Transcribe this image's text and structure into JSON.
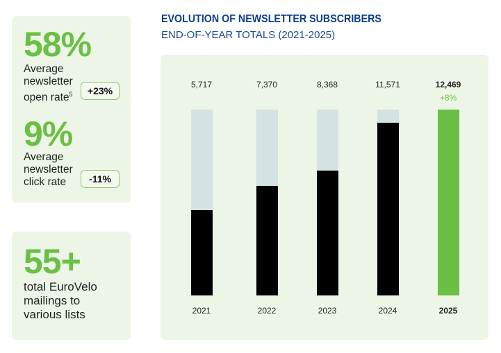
{
  "stats": {
    "open_rate": {
      "value": "58%",
      "label": "Average newsletter open rate",
      "footnote": "5",
      "change": "+23%"
    },
    "click_rate": {
      "value": "9%",
      "label": "Average newsletter click rate",
      "change": "-11%"
    },
    "mailings": {
      "value": "55+",
      "label": "total EuroVelo mailings to various lists"
    }
  },
  "colors": {
    "accent": "#6abf45",
    "bar": "#000000",
    "track": "#d5e2e3",
    "title": "#0a3d8f",
    "panel": "#edf5e6"
  },
  "chart_data": {
    "type": "bar",
    "title": "EVOLUTION OF NEWSLETTER SUBSCRIBERS",
    "subtitle": "END-OF-YEAR TOTALS (2021-2025)",
    "categories": [
      "2021",
      "2022",
      "2023",
      "2024",
      "2025"
    ],
    "values": [
      5717,
      7370,
      8368,
      11571,
      12469
    ],
    "value_labels": [
      "5,717",
      "7,370",
      "8,368",
      "11,571",
      "12,469"
    ],
    "highlight": {
      "category": "2025",
      "annotation": "+8%"
    },
    "ylim": [
      0,
      12469
    ],
    "grid": false
  }
}
